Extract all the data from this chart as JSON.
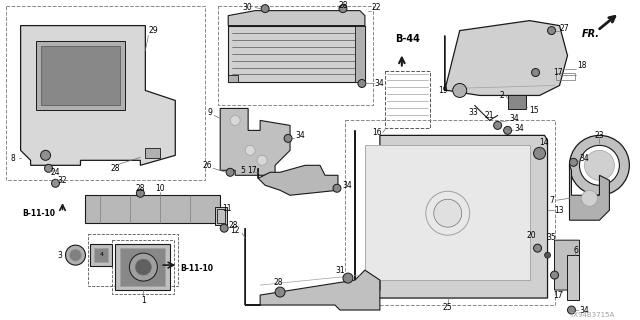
{
  "background_color": "#ffffff",
  "line_color": "#1a1a1a",
  "gray1": "#c8c8c8",
  "gray2": "#a0a0a0",
  "gray3": "#707070",
  "watermark": "TX94B3715A",
  "fr_text": "FR.",
  "b44_text": "B-44",
  "b1110_text": "B-11-10"
}
